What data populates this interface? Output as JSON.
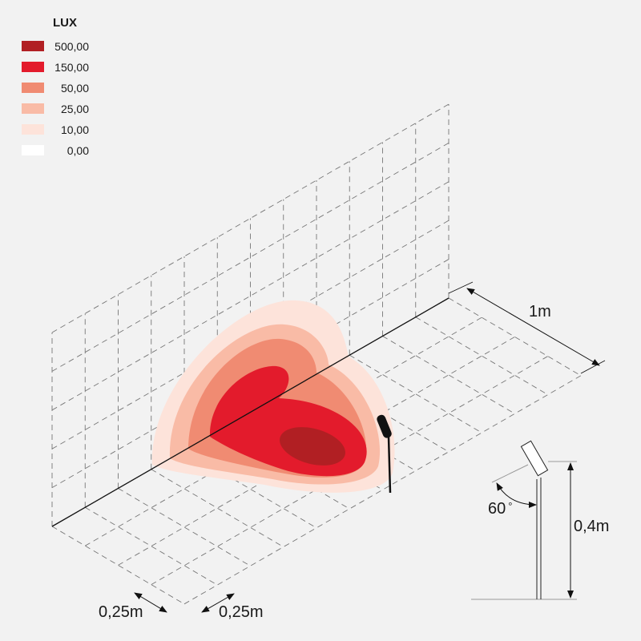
{
  "legend": {
    "title": "LUX",
    "items": [
      {
        "label": "500,00",
        "color": "#b11f23"
      },
      {
        "label": "150,00",
        "color": "#e31b2c"
      },
      {
        "label": "50,00",
        "color": "#f08b72"
      },
      {
        "label": "25,00",
        "color": "#f9bba6"
      },
      {
        "label": "10,00",
        "color": "#fde3da"
      },
      {
        "label": "0,00",
        "color": "#ffffff"
      }
    ]
  },
  "dimensions": {
    "length": "1m",
    "grid_left": "0,25m",
    "grid_right": "0,25m",
    "height": "0,4m",
    "angle": "60",
    "angle_unit": "°"
  }
}
